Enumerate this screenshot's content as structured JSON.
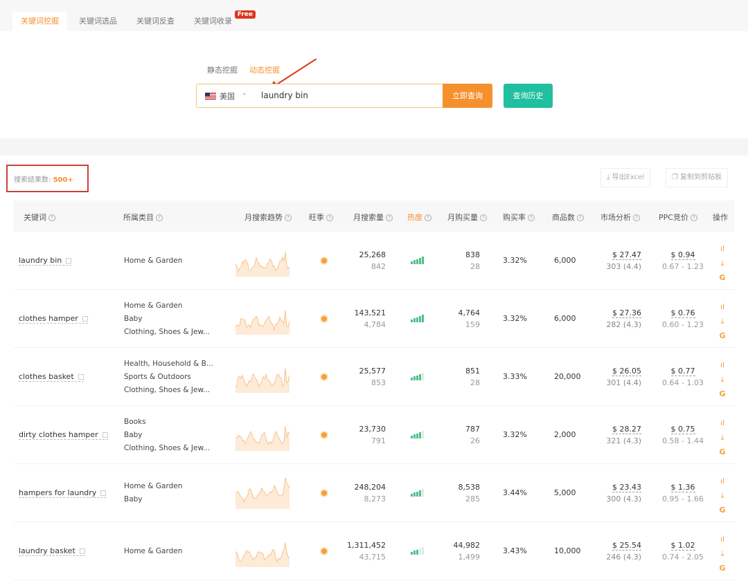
{
  "tabs": [
    {
      "label": "关键词挖掘",
      "active": true
    },
    {
      "label": "关键词选品"
    },
    {
      "label": "关键词反查"
    },
    {
      "label": "关键词收录",
      "badge": "Free"
    }
  ],
  "modes": [
    "静态挖掘",
    "动态挖掘"
  ],
  "search": {
    "country": "美国",
    "query": "laundry bin",
    "submit": "立即查询",
    "history": "查询历史"
  },
  "results": {
    "count_label": "搜索结果数:",
    "count": "500+",
    "export": "导出Excel",
    "copy": "复制到剪贴板"
  },
  "columns": [
    "关键词",
    "所属类目",
    "月搜索趋势",
    "旺季",
    "月搜索量",
    "热度",
    "月购买量",
    "购买率",
    "商品数",
    "市场分析",
    "PPC竞价",
    "操作"
  ],
  "colors": {
    "accent": "#f5912d",
    "teal": "#1fbfa0",
    "heat": "#4fbf8a"
  },
  "rows": [
    {
      "keyword": "laundry bin",
      "categories": [
        "Home & Garden"
      ],
      "search_volume": "25,268",
      "search_daily": "842",
      "heat_level": 5,
      "purchases": "838",
      "purchases_daily": "28",
      "rate": "3.32%",
      "products": "6,000",
      "price": "$ 27.47",
      "reviews": "303 (4.4)",
      "ppc": "$ 0.94",
      "ppc_range": "0.67 - 1.23"
    },
    {
      "keyword": "clothes hamper",
      "categories": [
        "Home & Garden",
        "Baby",
        "Clothing, Shoes & Jew..."
      ],
      "search_volume": "143,521",
      "search_daily": "4,784",
      "heat_level": 5,
      "purchases": "4,764",
      "purchases_daily": "159",
      "rate": "3.32%",
      "products": "6,000",
      "price": "$ 27.36",
      "reviews": "282 (4.3)",
      "ppc": "$ 0.76",
      "ppc_range": "0.60 - 1.23"
    },
    {
      "keyword": "clothes basket",
      "categories": [
        "Health, Household & B...",
        "Sports & Outdoors",
        "Clothing, Shoes & Jew..."
      ],
      "search_volume": "25,577",
      "search_daily": "853",
      "heat_level": 4,
      "purchases": "851",
      "purchases_daily": "28",
      "rate": "3.33%",
      "products": "20,000",
      "price": "$ 26.05",
      "reviews": "301 (4.4)",
      "ppc": "$ 0.77",
      "ppc_range": "0.64 - 1.03"
    },
    {
      "keyword": "dirty clothes hamper",
      "categories": [
        "Books",
        "Baby",
        "Clothing, Shoes & Jew..."
      ],
      "search_volume": "23,730",
      "search_daily": "791",
      "heat_level": 4,
      "purchases": "787",
      "purchases_daily": "26",
      "rate": "3.32%",
      "products": "2,000",
      "price": "$ 28.27",
      "reviews": "321 (4.3)",
      "ppc": "$ 0.75",
      "ppc_range": "0.58 - 1.44"
    },
    {
      "keyword": "hampers for laundry",
      "categories": [
        "Home & Garden",
        "Baby"
      ],
      "search_volume": "248,204",
      "search_daily": "8,273",
      "heat_level": 4,
      "purchases": "8,538",
      "purchases_daily": "285",
      "rate": "3.44%",
      "products": "5,000",
      "price": "$ 23.43",
      "reviews": "300 (4.3)",
      "ppc": "$ 1.36",
      "ppc_range": "0.95 - 1.66"
    },
    {
      "keyword": "laundry basket",
      "categories": [
        "Home & Garden"
      ],
      "search_volume": "1,311,452",
      "search_daily": "43,715",
      "heat_level": 3,
      "purchases": "44,982",
      "purchases_daily": "1,499",
      "rate": "3.43%",
      "products": "10,000",
      "price": "$ 25.54",
      "reviews": "246 (4.3)",
      "ppc": "$ 1.02",
      "ppc_range": "0.74 - 2.05"
    }
  ]
}
